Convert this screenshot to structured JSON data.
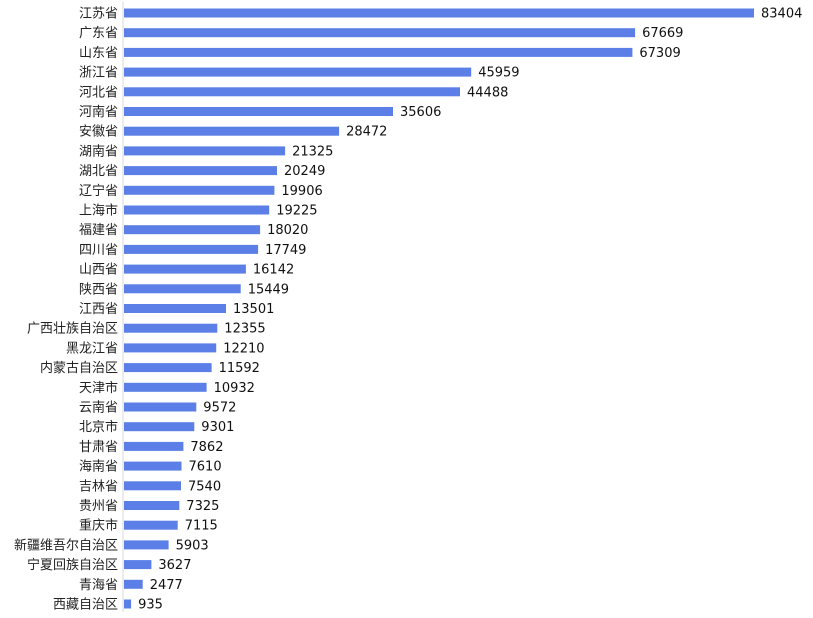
{
  "chart_data": {
    "type": "bar",
    "orientation": "horizontal",
    "title": "",
    "xlabel": "",
    "ylabel": "",
    "grid": false,
    "legend": "none",
    "xlim": [
      0,
      83404
    ],
    "bar_color": "#5b7fe6",
    "categories": [
      "江苏省",
      "广东省",
      "山东省",
      "浙江省",
      "河北省",
      "河南省",
      "安徽省",
      "湖南省",
      "湖北省",
      "辽宁省",
      "上海市",
      "福建省",
      "四川省",
      "山西省",
      "陕西省",
      "江西省",
      "广西壮族自治区",
      "黑龙江省",
      "内蒙古自治区",
      "天津市",
      "云南省",
      "北京市",
      "甘肃省",
      "海南省",
      "吉林省",
      "贵州省",
      "重庆市",
      "新疆维吾尔自治区",
      "宁夏回族自治区",
      "青海省",
      "西藏自治区"
    ],
    "values": [
      83404,
      67669,
      67309,
      45959,
      44488,
      35606,
      28472,
      21325,
      20249,
      19906,
      19225,
      18020,
      17749,
      16142,
      15449,
      13501,
      12355,
      12210,
      11592,
      10932,
      9572,
      9301,
      7862,
      7610,
      7540,
      7325,
      7115,
      5903,
      3627,
      2477,
      935
    ],
    "value_labels": [
      "83404",
      "67669",
      "67309",
      "45959",
      "44488",
      "35606",
      "28472",
      "21325",
      "20249",
      "19906",
      "19225",
      "18020",
      "17749",
      "16142",
      "15449",
      "13501",
      "12355",
      "12210",
      "11592",
      "10932",
      "9572",
      "9301",
      "7862",
      "7610",
      "7540",
      "7325",
      "7115",
      "5903",
      "3627",
      "2477",
      "935"
    ]
  }
}
